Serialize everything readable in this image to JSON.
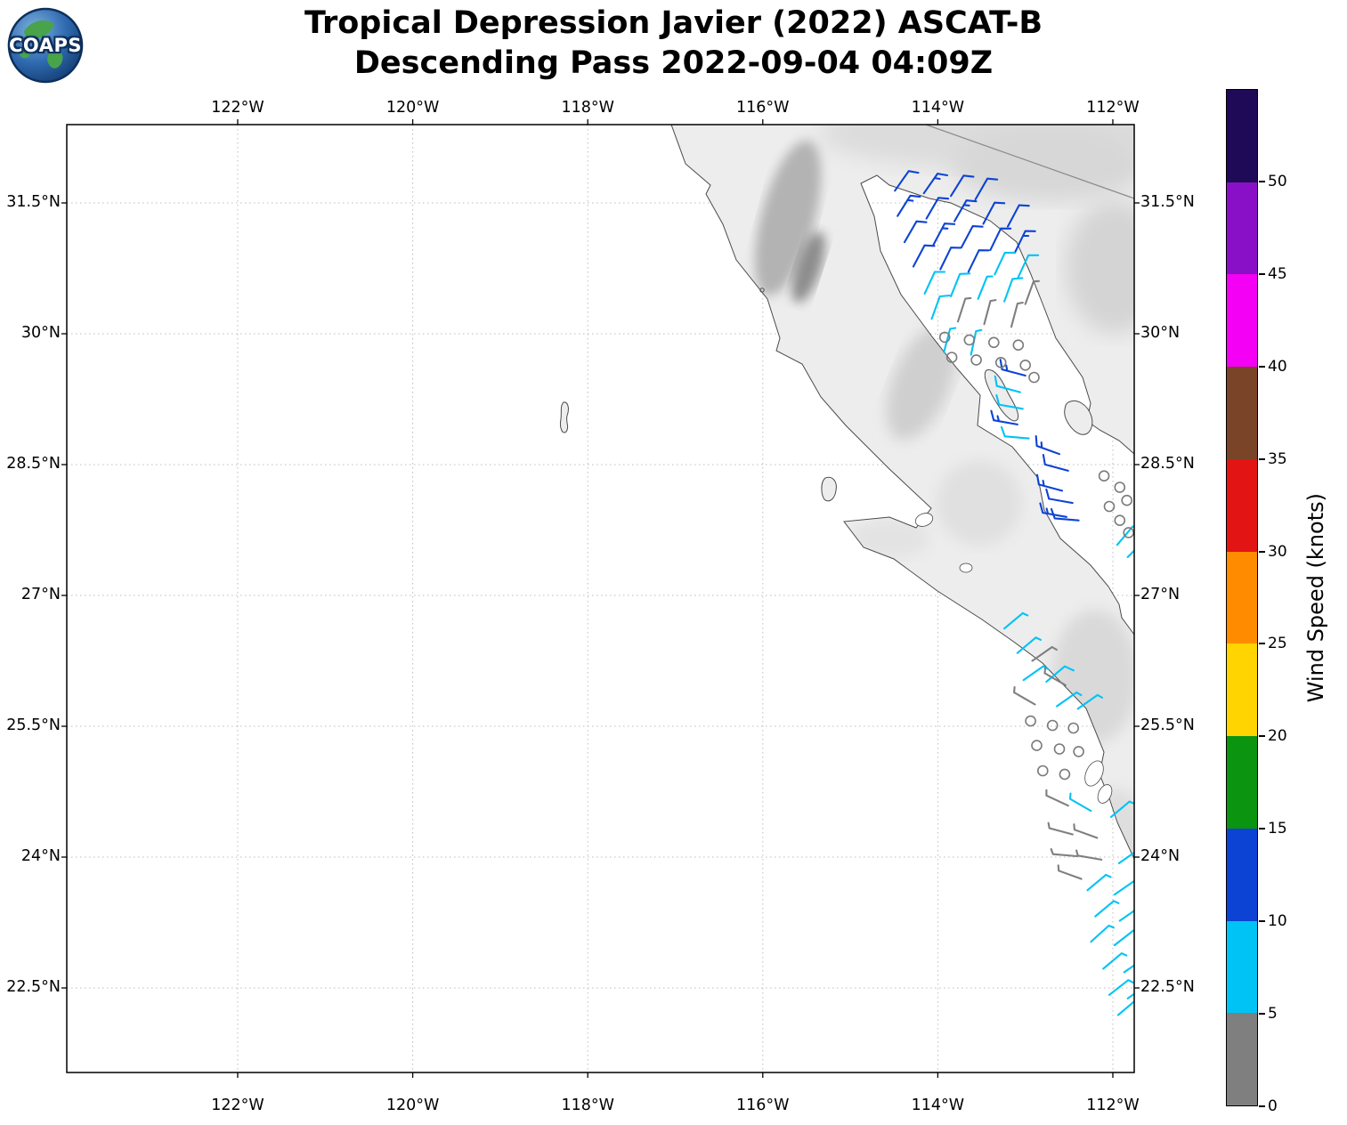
{
  "header": {
    "title_line1": "Tropical Depression Javier (2022) ASCAT-B",
    "title_line2": "Descending Pass 2022-09-04 04:09Z",
    "logo_text": "COAPS"
  },
  "axes": {
    "lon_ticks": [
      {
        "label": "122°W",
        "deg_west": 122
      },
      {
        "label": "120°W",
        "deg_west": 120
      },
      {
        "label": "118°W",
        "deg_west": 118
      },
      {
        "label": "116°W",
        "deg_west": 116
      },
      {
        "label": "114°W",
        "deg_west": 114
      },
      {
        "label": "112°W",
        "deg_west": 112
      }
    ],
    "lat_ticks": [
      {
        "label": "31.5°N",
        "deg_north": 31.5
      },
      {
        "label": "30°N",
        "deg_north": 30
      },
      {
        "label": "28.5°N",
        "deg_north": 28.5
      },
      {
        "label": "27°N",
        "deg_north": 27
      },
      {
        "label": "25.5°N",
        "deg_north": 25.5
      },
      {
        "label": "24°N",
        "deg_north": 24
      },
      {
        "label": "22.5°N",
        "deg_north": 22.5
      }
    ]
  },
  "colorbar": {
    "title": "Wind Speed (knots)",
    "boundary_labels": [
      "0",
      "5",
      "10",
      "15",
      "20",
      "25",
      "30",
      "35",
      "40",
      "45",
      "50"
    ],
    "segments_bottom_to_top": [
      {
        "range_knots": "0-5",
        "color": "#7f7f7f"
      },
      {
        "range_knots": "5-10",
        "color": "#00c3f5"
      },
      {
        "range_knots": "10-15",
        "color": "#0d43d4"
      },
      {
        "range_knots": "15-20",
        "color": "#0b9410"
      },
      {
        "range_knots": "20-25",
        "color": "#ffd400"
      },
      {
        "range_knots": "25-30",
        "color": "#ff8c00"
      },
      {
        "range_knots": "30-35",
        "color": "#e31414"
      },
      {
        "range_knots": "35-40",
        "color": "#7a4428"
      },
      {
        "range_knots": "40-45",
        "color": "#f400f4"
      },
      {
        "range_knots": "45-50",
        "color": "#8a10c8"
      },
      {
        "range_knots": ">50",
        "color": "#1e0a56"
      }
    ]
  },
  "chart_data": {
    "type": "map-windbarb",
    "title": "Tropical Depression Javier (2022) ASCAT-B Descending Pass 2022-09-04 04:09Z",
    "units": "knots",
    "lon_range_deg": [
      -123.95,
      -111.75
    ],
    "lat_range_deg": [
      21.53,
      32.4
    ],
    "legend_position": "right-colorbar",
    "grid": "dotted",
    "wind_barbs_lon_lat_dir_spd": [
      [
        -114.49,
        31.64,
        35,
        12
      ],
      [
        -114.16,
        31.61,
        35,
        13
      ],
      [
        -113.85,
        31.58,
        32,
        12
      ],
      [
        -113.57,
        31.54,
        30,
        12
      ],
      [
        -114.46,
        31.35,
        32,
        13
      ],
      [
        -114.13,
        31.32,
        30,
        12
      ],
      [
        -113.81,
        31.29,
        30,
        13
      ],
      [
        -113.48,
        31.26,
        28,
        12
      ],
      [
        -113.2,
        31.23,
        28,
        12
      ],
      [
        -114.38,
        31.05,
        30,
        12
      ],
      [
        -114.05,
        31.02,
        28,
        13
      ],
      [
        -113.73,
        30.99,
        28,
        12
      ],
      [
        -113.4,
        30.96,
        26,
        12
      ],
      [
        -113.12,
        30.93,
        26,
        13
      ],
      [
        -114.28,
        30.77,
        28,
        12
      ],
      [
        -113.97,
        30.74,
        26,
        12
      ],
      [
        -113.65,
        30.71,
        26,
        12
      ],
      [
        -113.35,
        30.68,
        25,
        8
      ],
      [
        -113.08,
        30.65,
        25,
        8
      ],
      [
        -114.15,
        30.46,
        25,
        8
      ],
      [
        -113.85,
        30.43,
        22,
        8
      ],
      [
        -113.54,
        30.4,
        22,
        7
      ],
      [
        -113.24,
        30.37,
        20,
        8
      ],
      [
        -113.0,
        30.34,
        20,
        3
      ],
      [
        -114.07,
        30.17,
        20,
        8
      ],
      [
        -113.77,
        30.14,
        18,
        3
      ],
      [
        -113.47,
        30.11,
        15,
        3
      ],
      [
        -113.16,
        30.08,
        15,
        3
      ],
      [
        -113.93,
        29.79,
        15,
        7
      ],
      [
        -113.62,
        29.76,
        12,
        7
      ],
      [
        -113.0,
        29.52,
        285,
        13
      ],
      [
        -113.06,
        29.33,
        285,
        8
      ],
      [
        -113.03,
        29.14,
        280,
        8
      ],
      [
        -113.09,
        28.96,
        280,
        13
      ],
      [
        -112.96,
        28.8,
        275,
        8
      ],
      [
        -112.61,
        28.62,
        290,
        13
      ],
      [
        -112.51,
        28.43,
        285,
        12
      ],
      [
        -112.58,
        28.2,
        285,
        13
      ],
      [
        -112.46,
        28.06,
        280,
        12
      ],
      [
        -112.53,
        27.9,
        280,
        13
      ],
      [
        -112.39,
        27.86,
        275,
        12
      ],
      [
        -111.95,
        27.58,
        40,
        7
      ],
      [
        -111.83,
        27.44,
        45,
        8
      ],
      [
        -113.24,
        26.62,
        50,
        7
      ],
      [
        -113.09,
        26.34,
        50,
        7
      ],
      [
        -112.92,
        26.25,
        55,
        3
      ],
      [
        -113.02,
        26.03,
        55,
        7
      ],
      [
        -112.76,
        26.01,
        50,
        8
      ],
      [
        -112.54,
        25.97,
        300,
        3
      ],
      [
        -112.89,
        25.75,
        300,
        3
      ],
      [
        -112.64,
        25.73,
        55,
        7
      ],
      [
        -112.4,
        25.7,
        55,
        7
      ],
      [
        -112.51,
        24.59,
        295,
        4
      ],
      [
        -112.25,
        24.53,
        300,
        7
      ],
      [
        -112.02,
        24.46,
        50,
        7
      ],
      [
        -112.46,
        24.26,
        285,
        4
      ],
      [
        -112.18,
        24.22,
        290,
        3
      ],
      [
        -112.41,
        24.01,
        275,
        4
      ],
      [
        -112.13,
        23.97,
        280,
        3
      ],
      [
        -111.93,
        23.93,
        55,
        7
      ],
      [
        -112.36,
        23.75,
        290,
        3
      ],
      [
        -112.29,
        23.62,
        50,
        7
      ],
      [
        -111.98,
        23.57,
        55,
        7
      ],
      [
        -112.2,
        23.32,
        50,
        7
      ],
      [
        -111.92,
        23.27,
        55,
        8
      ],
      [
        -112.25,
        23.03,
        48,
        7
      ],
      [
        -111.98,
        22.99,
        52,
        7
      ],
      [
        -112.11,
        22.72,
        50,
        7
      ],
      [
        -111.87,
        22.68,
        55,
        8
      ],
      [
        -112.04,
        22.42,
        52,
        7
      ],
      [
        -111.83,
        22.38,
        55,
        7
      ],
      [
        -111.94,
        22.19,
        50,
        7
      ]
    ],
    "calm_circles_lon_lat": [
      [
        -113.92,
        29.96
      ],
      [
        -113.64,
        29.93
      ],
      [
        -113.36,
        29.9
      ],
      [
        -113.08,
        29.87
      ],
      [
        -113.84,
        29.73
      ],
      [
        -113.56,
        29.7
      ],
      [
        -113.28,
        29.67
      ],
      [
        -113.0,
        29.64
      ],
      [
        -112.9,
        29.5
      ],
      [
        -112.1,
        28.37
      ],
      [
        -111.92,
        28.24
      ],
      [
        -111.84,
        28.09
      ],
      [
        -112.04,
        28.02
      ],
      [
        -111.92,
        27.86
      ],
      [
        -111.82,
        27.72
      ],
      [
        -112.94,
        25.56
      ],
      [
        -112.69,
        25.51
      ],
      [
        -112.45,
        25.48
      ],
      [
        -112.87,
        25.28
      ],
      [
        -112.61,
        25.24
      ],
      [
        -112.39,
        25.21
      ],
      [
        -112.8,
        24.99
      ],
      [
        -112.55,
        24.95
      ]
    ]
  }
}
